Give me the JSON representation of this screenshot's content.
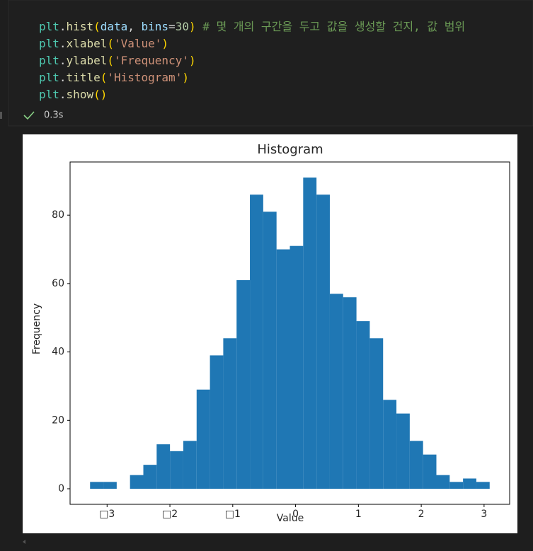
{
  "code": {
    "lines": [
      [
        {
          "text": "plt",
          "color": "#4ec9b0"
        },
        {
          "text": ".",
          "color": "#d4d4d4"
        },
        {
          "text": "hist",
          "color": "#dcdcaa"
        },
        {
          "text": "(",
          "color": "#ffd700"
        },
        {
          "text": "data",
          "color": "#9cdcfe"
        },
        {
          "text": ", ",
          "color": "#d4d4d4"
        },
        {
          "text": "bins",
          "color": "#9cdcfe"
        },
        {
          "text": "=",
          "color": "#d4d4d4"
        },
        {
          "text": "30",
          "color": "#b5cea8"
        },
        {
          "text": ")",
          "color": "#ffd700"
        },
        {
          "text": " # 몇 개의 구간을 두고 값을 생성할 건지, 값 범위",
          "color": "#6a9955"
        }
      ],
      [
        {
          "text": "plt",
          "color": "#4ec9b0"
        },
        {
          "text": ".",
          "color": "#d4d4d4"
        },
        {
          "text": "xlabel",
          "color": "#dcdcaa"
        },
        {
          "text": "(",
          "color": "#ffd700"
        },
        {
          "text": "'Value'",
          "color": "#ce9178"
        },
        {
          "text": ")",
          "color": "#ffd700"
        }
      ],
      [
        {
          "text": "plt",
          "color": "#4ec9b0"
        },
        {
          "text": ".",
          "color": "#d4d4d4"
        },
        {
          "text": "ylabel",
          "color": "#dcdcaa"
        },
        {
          "text": "(",
          "color": "#ffd700"
        },
        {
          "text": "'Frequency'",
          "color": "#ce9178"
        },
        {
          "text": ")",
          "color": "#ffd700"
        }
      ],
      [
        {
          "text": "plt",
          "color": "#4ec9b0"
        },
        {
          "text": ".",
          "color": "#d4d4d4"
        },
        {
          "text": "title",
          "color": "#dcdcaa"
        },
        {
          "text": "(",
          "color": "#ffd700"
        },
        {
          "text": "'Histogram'",
          "color": "#ce9178"
        },
        {
          "text": ")",
          "color": "#ffd700"
        }
      ],
      [
        {
          "text": "plt",
          "color": "#4ec9b0"
        },
        {
          "text": ".",
          "color": "#d4d4d4"
        },
        {
          "text": "show",
          "color": "#dcdcaa"
        },
        {
          "text": "()",
          "color": "#ffd700"
        }
      ]
    ]
  },
  "status": {
    "duration": "0.3s"
  },
  "chart_data": {
    "type": "histogram",
    "title": "Histogram",
    "x_label": "Value",
    "y_label": "Frequency",
    "color": "#1f77b4",
    "bins": [
      -3.271,
      -3.059,
      -2.847,
      -2.635,
      -2.423,
      -2.211,
      -1.999,
      -1.787,
      -1.575,
      -1.363,
      -1.151,
      -0.939,
      -0.727,
      -0.515,
      -0.303,
      -0.091,
      0.121,
      0.333,
      0.545,
      0.757,
      0.969,
      1.181,
      1.393,
      1.605,
      1.817,
      2.029,
      2.241,
      2.453,
      2.665,
      2.877,
      3.089
    ],
    "values": [
      2,
      2,
      0,
      4,
      7,
      13,
      11,
      14,
      29,
      39,
      44,
      61,
      86,
      81,
      70,
      71,
      91,
      86,
      57,
      56,
      49,
      44,
      26,
      22,
      14,
      10,
      4,
      2,
      3,
      2
    ],
    "xlim": [
      -3.589,
      3.407
    ],
    "ylim": [
      -4.55,
      95.55
    ],
    "xticks": [
      {
        "value": -3,
        "label": "□3"
      },
      {
        "value": -2,
        "label": "□2"
      },
      {
        "value": -1,
        "label": "□1"
      },
      0,
      1,
      2,
      3
    ],
    "yticks": [
      0,
      20,
      40,
      60,
      80
    ]
  }
}
